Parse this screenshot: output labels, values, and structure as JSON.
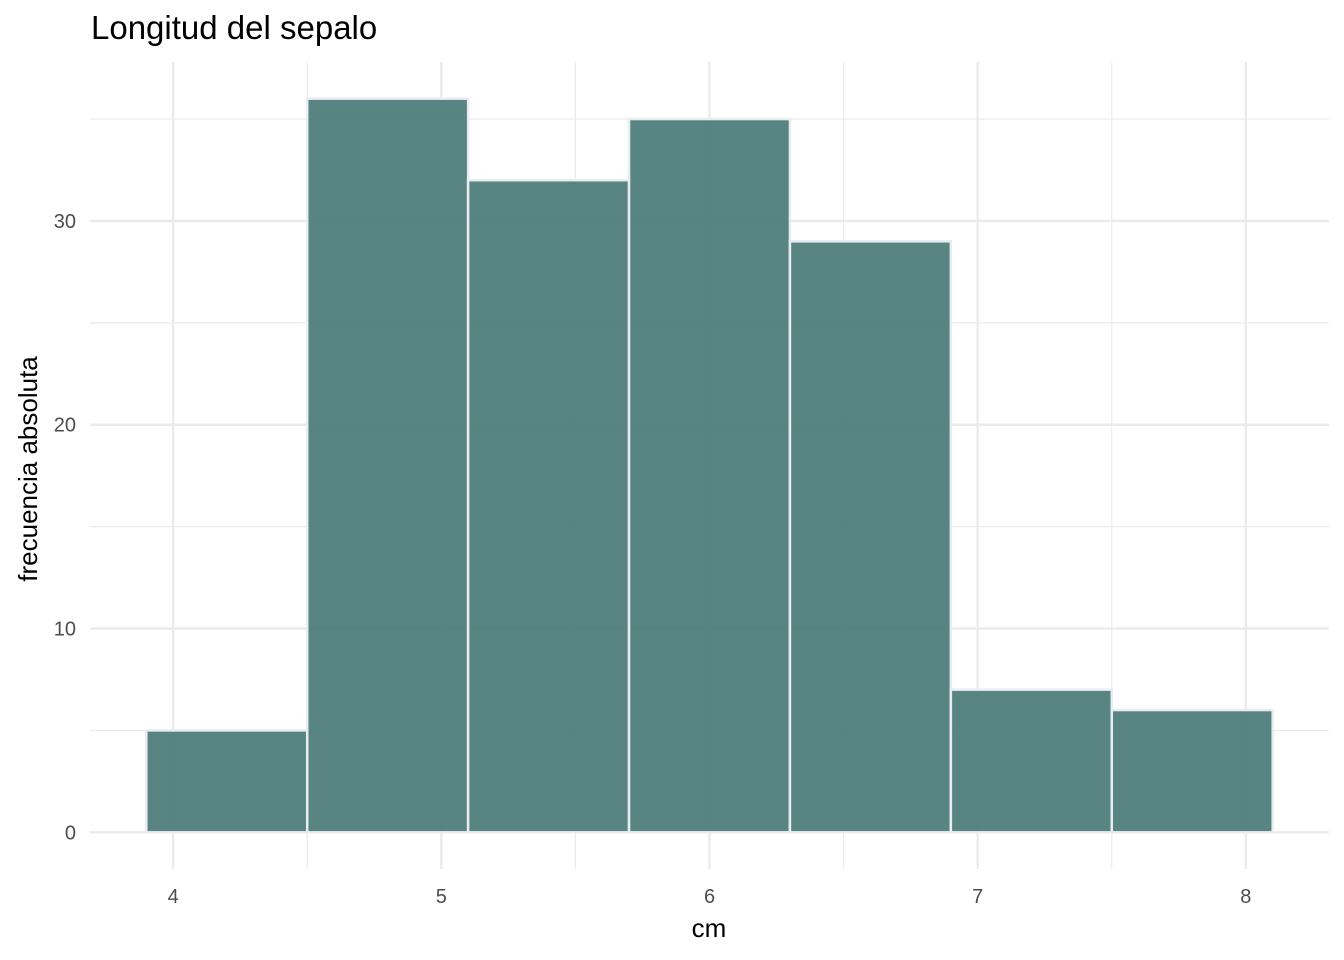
{
  "chart_data": {
    "type": "bar",
    "subtype": "histogram",
    "title": "Longitud del sepalo",
    "xlabel": "cm",
    "ylabel": "frecuencia absoluta",
    "bins": [
      {
        "start": 3.9,
        "end": 4.5,
        "count": 5
      },
      {
        "start": 4.5,
        "end": 5.1,
        "count": 36
      },
      {
        "start": 5.1,
        "end": 5.7,
        "count": 32
      },
      {
        "start": 5.7,
        "end": 6.3,
        "count": 35
      },
      {
        "start": 6.3,
        "end": 6.9,
        "count": 29
      },
      {
        "start": 6.9,
        "end": 7.5,
        "count": 7
      },
      {
        "start": 7.5,
        "end": 8.1,
        "count": 6
      }
    ],
    "x_ticks": [
      "4",
      "5",
      "6",
      "7",
      "8"
    ],
    "y_ticks": [
      "0",
      "10",
      "20",
      "30"
    ],
    "xlim": [
      3.69,
      8.31
    ],
    "ylim": [
      -1.8,
      37.8
    ],
    "grid": true,
    "colors": {
      "bar_fill": "#4a7a76",
      "bar_outline": "#e9ecf1",
      "grid": "#ebebeb"
    }
  }
}
